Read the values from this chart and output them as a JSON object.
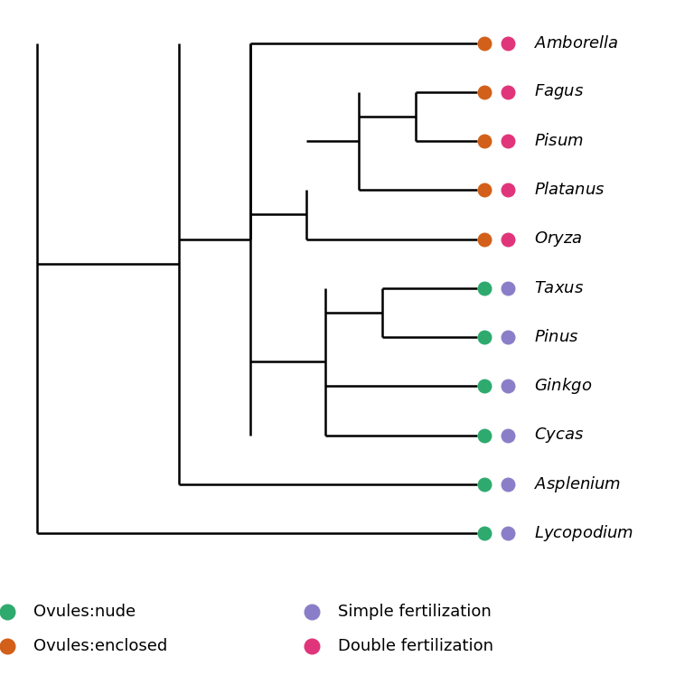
{
  "taxa": [
    "Amborella",
    "Fagus",
    "Pisum",
    "Platanus",
    "Oryza",
    "Taxus",
    "Pinus",
    "Ginkgo",
    "Cycas",
    "Asplenium",
    "Lycopodium"
  ],
  "ovule_colors": [
    "#d2601a",
    "#d2601a",
    "#d2601a",
    "#d2601a",
    "#d2601a",
    "#2eaa6e",
    "#2eaa6e",
    "#2eaa6e",
    "#2eaa6e",
    "#2eaa6e",
    "#2eaa6e"
  ],
  "fert_colors": [
    "#e0357a",
    "#e0357a",
    "#e0357a",
    "#e0357a",
    "#e0357a",
    "#8b7ec8",
    "#8b7ec8",
    "#8b7ec8",
    "#8b7ec8",
    "#8b7ec8",
    "#8b7ec8"
  ],
  "green": "#2eaa6e",
  "orange": "#d2601a",
  "purple": "#8b7ec8",
  "pink": "#e0357a",
  "legend_labels": [
    "Ovules:nude",
    "Ovules:enclosed",
    "Simple fertilization",
    "Double fertilization"
  ],
  "tree_color": "#000000",
  "background": "#ffffff",
  "lw": 1.8,
  "marker_size": 110,
  "font_size": 13
}
